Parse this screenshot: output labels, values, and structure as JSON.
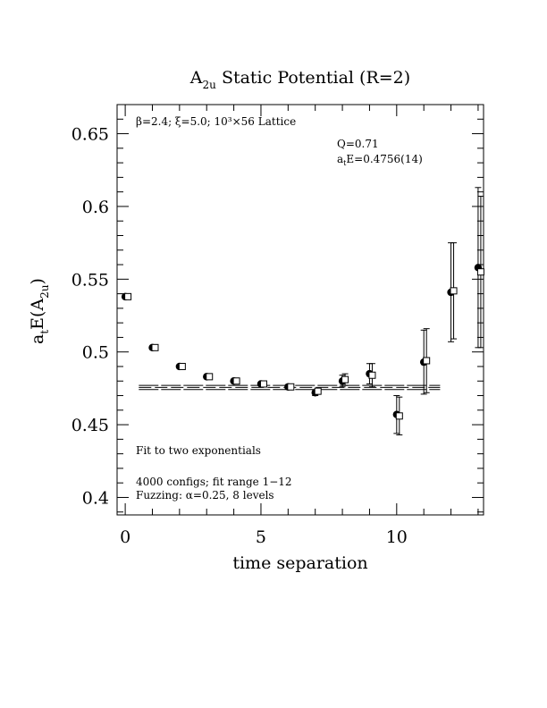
{
  "chart_data": {
    "type": "scatter",
    "title": "A<sub>2u</sub> Static Potential (R=2)",
    "title_main": "A",
    "title_sub": "2u",
    "title_rest": " Static Potential (R=2)",
    "xlabel": "time separation",
    "ylabel_main": "a",
    "ylabel_sub1": "t",
    "ylabel_mid": "E(A",
    "ylabel_sub2": "2u",
    "ylabel_end": ")",
    "xlim": [
      -0.3,
      13.2
    ],
    "ylim": [
      0.388,
      0.67
    ],
    "x_ticks": [
      0,
      5,
      10
    ],
    "x_tick_labels": [
      "0",
      "5",
      "10"
    ],
    "y_ticks": [
      0.4,
      0.45,
      0.5,
      0.55,
      0.6,
      0.65
    ],
    "y_tick_labels": [
      "0.4",
      "0.45",
      "0.5",
      "0.55",
      "0.6",
      "0.65"
    ],
    "annotations": {
      "lattice": "β=2.4; ξ=5.0; 10³×56 Lattice",
      "q": "Q=0.71",
      "energy_main": "a",
      "energy_sub": "t",
      "energy_rest": "E=0.4756(14)",
      "fit_method": "Fit to two exponentials",
      "configs": "4000 configs; fit range 1−12",
      "fuzzing": "Fuzzing: α=0.25, 8 levels"
    },
    "fit": {
      "value": 0.4756,
      "error": 0.0014,
      "x_range": [
        0.5,
        11.6
      ]
    },
    "series": [
      {
        "marker": "filled-circle",
        "points": [
          {
            "x": 0,
            "y": 0.538,
            "err": 0.001
          },
          {
            "x": 1,
            "y": 0.503,
            "err": 0.001
          },
          {
            "x": 2,
            "y": 0.49,
            "err": 0.001
          },
          {
            "x": 3,
            "y": 0.483,
            "err": 0.001
          },
          {
            "x": 4,
            "y": 0.48,
            "err": 0.001
          },
          {
            "x": 5,
            "y": 0.478,
            "err": 0.0012
          },
          {
            "x": 6,
            "y": 0.476,
            "err": 0.0015
          },
          {
            "x": 7,
            "y": 0.472,
            "err": 0.002
          },
          {
            "x": 8,
            "y": 0.48,
            "err": 0.004
          },
          {
            "x": 9,
            "y": 0.485,
            "err": 0.007
          },
          {
            "x": 10,
            "y": 0.457,
            "err": 0.013
          },
          {
            "x": 11,
            "y": 0.493,
            "err": 0.022
          },
          {
            "x": 12,
            "y": 0.541,
            "err": 0.034
          },
          {
            "x": 13,
            "y": 0.558,
            "err": 0.055
          }
        ]
      },
      {
        "marker": "open-square",
        "points": [
          {
            "x": 0,
            "y": 0.538,
            "err": 0.001
          },
          {
            "x": 1,
            "y": 0.503,
            "err": 0.001
          },
          {
            "x": 2,
            "y": 0.49,
            "err": 0.001
          },
          {
            "x": 3,
            "y": 0.483,
            "err": 0.001
          },
          {
            "x": 4,
            "y": 0.48,
            "err": 0.001
          },
          {
            "x": 5,
            "y": 0.478,
            "err": 0.0012
          },
          {
            "x": 6,
            "y": 0.476,
            "err": 0.0015
          },
          {
            "x": 7,
            "y": 0.473,
            "err": 0.002
          },
          {
            "x": 8,
            "y": 0.481,
            "err": 0.004
          },
          {
            "x": 9,
            "y": 0.484,
            "err": 0.008
          },
          {
            "x": 10,
            "y": 0.456,
            "err": 0.013
          },
          {
            "x": 11,
            "y": 0.494,
            "err": 0.022
          },
          {
            "x": 12,
            "y": 0.542,
            "err": 0.033
          },
          {
            "x": 13,
            "y": 0.555,
            "err": 0.052
          }
        ]
      }
    ]
  }
}
